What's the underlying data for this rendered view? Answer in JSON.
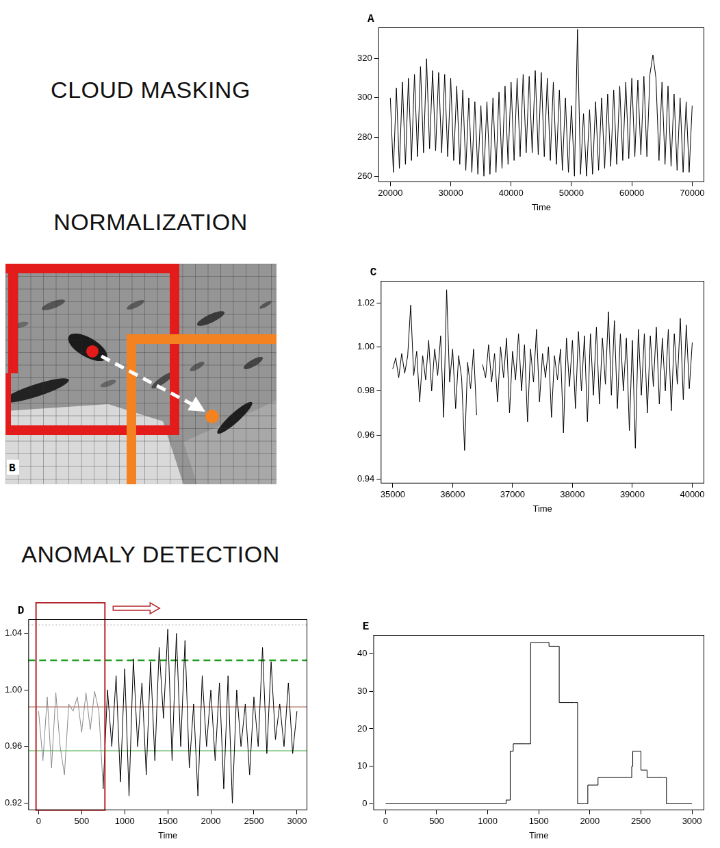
{
  "headings": [
    "CLOUD MASKING",
    "NORMALIZATION",
    "ANOMALY DETECTION"
  ],
  "image_panel": {
    "label": "B"
  },
  "chart_data": [
    {
      "label": "A",
      "type": "line",
      "x_label": "Time",
      "color": "#000000",
      "grid": false,
      "xlim": [
        18000,
        72000
      ],
      "xticks": [
        20000,
        30000,
        40000,
        50000,
        60000,
        70000
      ],
      "ylim": [
        257,
        336
      ],
      "yticks": [
        260,
        280,
        300,
        320
      ],
      "x": [
        20000,
        20500,
        21000,
        21500,
        22000,
        22500,
        23000,
        23500,
        24000,
        24500,
        25000,
        25500,
        26000,
        26500,
        27000,
        27500,
        28000,
        28500,
        29000,
        29500,
        30000,
        30500,
        31000,
        31500,
        32000,
        32500,
        33000,
        33500,
        34000,
        34500,
        35000,
        35500,
        36000,
        36500,
        37000,
        37500,
        38000,
        38500,
        39000,
        39500,
        40000,
        40500,
        41000,
        41500,
        42000,
        42500,
        43000,
        43500,
        44000,
        44500,
        45000,
        45500,
        46000,
        46500,
        47000,
        47500,
        48000,
        48500,
        49000,
        49500,
        50000,
        50500,
        51000,
        51500,
        52000,
        52500,
        53000,
        53500,
        54000,
        54500,
        55000,
        55500,
        56000,
        56500,
        57000,
        57500,
        58000,
        58500,
        59000,
        59500,
        60000,
        60500,
        61000,
        61500,
        62000,
        62500,
        63000,
        63500,
        64000,
        64500,
        65000,
        65500,
        66000,
        66500,
        67000,
        67500,
        68000,
        68500,
        69000,
        69500,
        70000
      ],
      "values": [
        300,
        262,
        305,
        264,
        308,
        266,
        310,
        268,
        312,
        270,
        316,
        272,
        320,
        274,
        314,
        273,
        313,
        272,
        312,
        270,
        310,
        268,
        306,
        266,
        304,
        263,
        300,
        262,
        298,
        261,
        296,
        260,
        298,
        261,
        300,
        262,
        303,
        264,
        306,
        266,
        308,
        268,
        310,
        270,
        312,
        272,
        311,
        272,
        314,
        271,
        313,
        270,
        310,
        268,
        308,
        266,
        304,
        263,
        300,
        262,
        296,
        260,
        335,
        261,
        292,
        260,
        294,
        261,
        298,
        263,
        300,
        264,
        302,
        265,
        304,
        266,
        306,
        268,
        308,
        269,
        310,
        270,
        309,
        271,
        311,
        270,
        312,
        322,
        310,
        268,
        308,
        266,
        306,
        265,
        302,
        263,
        300,
        262,
        298,
        262,
        296
      ]
    },
    {
      "label": "C",
      "type": "line",
      "x_label": "Time",
      "color": "#000000",
      "grid": false,
      "xlim": [
        34800,
        40200
      ],
      "xticks": [
        35000,
        36000,
        37000,
        38000,
        39000,
        40000
      ],
      "ylim": [
        0.938,
        1.03
      ],
      "yticks": [
        0.94,
        0.96,
        0.98,
        {
          "value": 1,
          "label": "1.00"
        },
        1.02
      ],
      "x": [
        35000,
        35050,
        35100,
        35150,
        35200,
        35250,
        35300,
        35350,
        35400,
        35450,
        35500,
        35550,
        35600,
        35650,
        35700,
        35750,
        35800,
        35850,
        35900,
        35950,
        36000,
        36050,
        36100,
        36150,
        36200,
        36250,
        36300,
        36350,
        36400,
        36450,
        36500,
        36550,
        36600,
        36650,
        36700,
        36750,
        36800,
        36850,
        36900,
        36950,
        37000,
        37050,
        37100,
        37150,
        37200,
        37250,
        37300,
        37350,
        37400,
        37450,
        37500,
        37550,
        37600,
        37650,
        37700,
        37750,
        37800,
        37850,
        37900,
        37950,
        38000,
        38050,
        38100,
        38150,
        38200,
        38250,
        38300,
        38350,
        38400,
        38450,
        38500,
        38550,
        38600,
        38650,
        38700,
        38750,
        38800,
        38850,
        38900,
        38950,
        39000,
        39050,
        39100,
        39150,
        39200,
        39250,
        39300,
        39350,
        39400,
        39450,
        39500,
        39550,
        39600,
        39650,
        39700,
        39750,
        39800,
        39850,
        39900,
        39950,
        40000
      ],
      "values": [
        0.99,
        0.995,
        0.986,
        0.997,
        0.988,
        0.996,
        1.019,
        0.987,
        0.998,
        0.975,
        0.996,
        0.985,
        1.003,
        0.98,
        0.999,
        0.987,
        1.005,
        0.968,
        1.026,
        0.984,
        0.999,
        0.972,
        0.996,
        0.986,
        0.953,
        0.993,
        0.981,
        0.999,
        0.969,
        null,
        0.992,
        0.986,
        1.001,
        0.984,
        0.997,
        0.975,
        1.0,
        0.986,
        1.004,
        0.97,
        0.998,
        0.985,
        1.006,
        0.98,
        1.001,
        0.966,
        0.999,
        0.984,
        1.008,
        0.975,
        0.997,
        0.986,
        1.0,
        0.968,
        0.996,
        0.985,
        0.999,
        0.961,
        1.004,
        0.982,
        1.003,
        0.972,
        1.007,
        0.98,
        1.005,
        0.966,
        1.006,
        0.978,
        1.009,
        0.974,
        1.004,
        0.983,
        1.016,
        0.978,
        1.012,
        0.972,
        1.006,
        0.98,
        1.004,
        0.962,
        1.003,
        0.954,
        1.008,
        0.978,
        1.006,
        0.97,
        1.005,
        0.982,
        1.009,
        0.974,
        1.004,
        0.98,
        1.008,
        0.971,
        1.006,
        0.983,
        1.013,
        0.976,
        1.01,
        0.981,
        1.002
      ]
    },
    {
      "label": "D",
      "type": "line",
      "x_label": "Time",
      "color": "#000000",
      "grid": false,
      "xlim": [
        -120,
        3120
      ],
      "xticks": [
        0,
        500,
        1000,
        1500,
        2000,
        2500,
        3000
      ],
      "ylim": [
        0.915,
        1.05
      ],
      "yticks": [
        0.92,
        0.96,
        {
          "value": 1,
          "label": "1.00"
        },
        1.04
      ],
      "hlines": [
        {
          "value": 1.046,
          "color": "#999999",
          "line_style": "dotted"
        },
        {
          "value": 1.021,
          "color": "#1e9e1e",
          "line_style": "dashed"
        },
        {
          "value": 0.988,
          "color": "#a0523c",
          "line_style": "solid"
        },
        {
          "value": 0.957,
          "color": "#2ea02e",
          "line_style": "solid"
        }
      ],
      "window": {
        "range": [
          -30,
          770
        ],
        "color": "#b3262b"
      },
      "x": [
        0,
        50,
        100,
        150,
        200,
        250,
        300,
        350,
        400,
        450,
        500,
        550,
        600,
        650,
        700,
        750,
        800,
        850,
        900,
        950,
        1000,
        1050,
        1100,
        1150,
        1200,
        1250,
        1300,
        1350,
        1400,
        1450,
        1500,
        1550,
        1600,
        1650,
        1700,
        1750,
        1800,
        1850,
        1900,
        1950,
        2000,
        2050,
        2100,
        2150,
        2200,
        2250,
        2300,
        2350,
        2400,
        2450,
        2500,
        2550,
        2600,
        2650,
        2700,
        2750,
        2800,
        2850,
        2900,
        2950,
        3000
      ],
      "values": [
        0.985,
        0.95,
        0.995,
        0.945,
        0.998,
        0.96,
        0.94,
        0.99,
        0.985,
        0.995,
        0.97,
        0.998,
        0.972,
        0.999,
        0.985,
        0.93,
        1.0,
        0.96,
        1.01,
        0.935,
        1.015,
        0.925,
        1.022,
        0.96,
        1.005,
        0.94,
        1.02,
        0.95,
        1.03,
        0.98,
        1.043,
        0.95,
        1.04,
        0.96,
        1.035,
        0.945,
        0.99,
        0.925,
        1.01,
        0.96,
        1.0,
        0.95,
        1.005,
        0.93,
        1.01,
        0.92,
        1.0,
        0.96,
        0.99,
        0.94,
        0.995,
        0.96,
        1.03,
        0.955,
        1.02,
        0.965,
        0.99,
        0.96,
        1.005,
        0.955,
        0.985
      ]
    },
    {
      "label": "E",
      "type": "line",
      "line_style": "step",
      "x_label": "Time",
      "color": "#000000",
      "grid": false,
      "xlim": [
        -120,
        3120
      ],
      "xticks": [
        0,
        500,
        1000,
        1500,
        2000,
        2500,
        3000
      ],
      "ylim": [
        -1.7,
        45
      ],
      "yticks": [
        0,
        10,
        20,
        30,
        40
      ],
      "x": [
        0,
        1150,
        1180,
        1220,
        1250,
        1380,
        1420,
        1600,
        1680,
        1700,
        1850,
        1880,
        1950,
        1980,
        2050,
        2080,
        2380,
        2410,
        2420,
        2480,
        2500,
        2560,
        2720,
        2750,
        3000
      ],
      "values": [
        0,
        0,
        1,
        14,
        16,
        16,
        43,
        42,
        42,
        27,
        27,
        0,
        0,
        5,
        5,
        7,
        7,
        10,
        14,
        14,
        9,
        7,
        7,
        0,
        0
      ]
    }
  ]
}
